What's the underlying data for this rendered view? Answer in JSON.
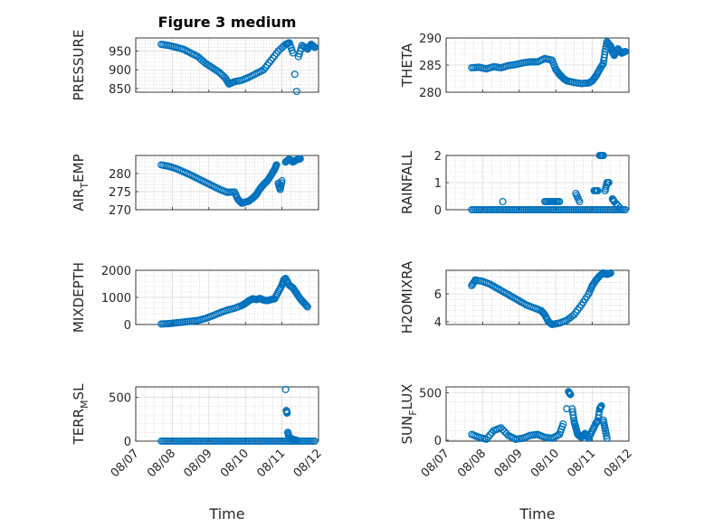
{
  "figure": {
    "title": "Figure 3 medium",
    "xlabel": "Time",
    "marker_color": "#0072BD"
  },
  "chart_data": [
    {
      "type": "scatter",
      "ylabel": "PRESSURE",
      "y_sub": "",
      "xlim": [
        "08/07",
        "08/12"
      ],
      "ylim": [
        840,
        985
      ],
      "yticks": [
        850,
        900,
        950
      ],
      "xticklabels": false,
      "series": [
        {
          "values": [
            [
              0.7,
              968
            ],
            [
              0.9,
              965
            ],
            [
              1.1,
              960
            ],
            [
              1.3,
              955
            ],
            [
              1.5,
              945
            ],
            [
              1.7,
              935
            ],
            [
              1.9,
              918
            ],
            [
              2.1,
              905
            ],
            [
              2.3,
              892
            ],
            [
              2.45,
              878
            ],
            [
              2.55,
              862
            ],
            [
              2.7,
              868
            ],
            [
              2.9,
              872
            ],
            [
              3.1,
              880
            ],
            [
              3.3,
              890
            ],
            [
              3.5,
              900
            ],
            [
              3.7,
              925
            ],
            [
              3.9,
              950
            ],
            [
              4.1,
              968
            ],
            [
              4.2,
              972
            ],
            [
              4.3,
              945
            ],
            [
              4.35,
              888
            ],
            [
              4.4,
              842
            ],
            [
              4.45,
              935
            ],
            [
              4.55,
              965
            ],
            [
              4.7,
              955
            ],
            [
              4.8,
              968
            ],
            [
              4.9,
              960
            ]
          ]
        }
      ]
    },
    {
      "type": "scatter",
      "ylabel": "THETA",
      "y_sub": "",
      "xlim": [
        "08/07",
        "08/12"
      ],
      "ylim": [
        280,
        290
      ],
      "yticks": [
        280,
        285,
        290
      ],
      "xticklabels": false,
      "series": [
        {
          "values": [
            [
              0.7,
              284.5
            ],
            [
              0.9,
              284.6
            ],
            [
              1.1,
              284.3
            ],
            [
              1.3,
              284.7
            ],
            [
              1.5,
              284.5
            ],
            [
              1.7,
              284.9
            ],
            [
              1.9,
              285.1
            ],
            [
              2.1,
              285.4
            ],
            [
              2.3,
              285.6
            ],
            [
              2.5,
              285.6
            ],
            [
              2.7,
              286.2
            ],
            [
              2.9,
              285.9
            ],
            [
              3.0,
              284.2
            ],
            [
              3.1,
              283.3
            ],
            [
              3.2,
              282.6
            ],
            [
              3.3,
              282.1
            ],
            [
              3.5,
              281.8
            ],
            [
              3.7,
              281.6
            ],
            [
              3.9,
              281.7
            ],
            [
              4.0,
              282.1
            ],
            [
              4.1,
              283.0
            ],
            [
              4.2,
              284.2
            ],
            [
              4.3,
              285.3
            ],
            [
              4.35,
              287.5
            ],
            [
              4.4,
              289.3
            ],
            [
              4.5,
              288.5
            ],
            [
              4.55,
              287.4
            ],
            [
              4.6,
              286.8
            ],
            [
              4.7,
              288.0
            ],
            [
              4.8,
              287.2
            ],
            [
              4.9,
              287.5
            ]
          ]
        }
      ]
    },
    {
      "type": "scatter",
      "ylabel": "AIR",
      "y_sub": "T",
      "ylabel_tail": "EMP",
      "xlim": [
        "08/07",
        "08/12"
      ],
      "ylim": [
        270,
        285
      ],
      "yticks": [
        270,
        275,
        280
      ],
      "xticklabels": false,
      "series": [
        {
          "values": [
            [
              0.7,
              282.4
            ],
            [
              0.9,
              282.0
            ],
            [
              1.1,
              281.4
            ],
            [
              1.3,
              280.5
            ],
            [
              1.5,
              279.6
            ],
            [
              1.7,
              278.6
            ],
            [
              1.9,
              277.6
            ],
            [
              2.1,
              276.6
            ],
            [
              2.3,
              275.6
            ],
            [
              2.5,
              274.8
            ],
            [
              2.7,
              274.9
            ],
            [
              2.8,
              272.8
            ],
            [
              2.9,
              271.8
            ],
            [
              3.0,
              272.1
            ],
            [
              3.1,
              272.4
            ],
            [
              3.2,
              273.2
            ],
            [
              3.3,
              274.2
            ],
            [
              3.4,
              275.8
            ],
            [
              3.5,
              277.0
            ],
            [
              3.6,
              278.0
            ],
            [
              3.7,
              279.5
            ],
            [
              3.8,
              281.2
            ],
            [
              3.85,
              282.4
            ],
            [
              3.9,
              277.3
            ],
            [
              3.95,
              275.6
            ],
            [
              4.0,
              278.0
            ],
            [
              4.1,
              283.2
            ],
            [
              4.2,
              284.0
            ],
            [
              4.3,
              283.2
            ],
            [
              4.4,
              283.8
            ],
            [
              4.5,
              284.1
            ]
          ]
        }
      ]
    },
    {
      "type": "scatter",
      "ylabel": "RAINFALL",
      "y_sub": "",
      "xlim": [
        "08/07",
        "08/12"
      ],
      "ylim": [
        0,
        2
      ],
      "yticks": [
        0,
        1,
        2
      ],
      "xticklabels": false,
      "series": [
        {
          "values": [
            [
              0.7,
              0
            ],
            [
              0.9,
              0
            ],
            [
              1.1,
              0
            ],
            [
              1.3,
              0
            ],
            [
              1.5,
              0
            ],
            [
              1.7,
              0
            ],
            [
              1.9,
              0
            ],
            [
              2.1,
              0
            ],
            [
              2.3,
              0
            ],
            [
              2.5,
              0
            ],
            [
              2.7,
              0
            ],
            [
              2.9,
              0
            ],
            [
              3.1,
              0
            ],
            [
              3.3,
              0
            ],
            [
              3.5,
              0
            ],
            [
              3.7,
              0
            ],
            [
              3.9,
              0
            ],
            [
              4.1,
              0
            ],
            [
              4.3,
              0
            ],
            [
              4.5,
              0
            ],
            [
              4.7,
              0
            ],
            [
              4.9,
              0
            ],
            [
              1.55,
              0.3
            ],
            [
              2.7,
              0.3
            ],
            [
              2.85,
              0.3
            ],
            [
              2.95,
              0.3
            ],
            [
              3.1,
              0.3
            ],
            [
              3.55,
              0.6
            ],
            [
              3.65,
              0.3
            ],
            [
              4.05,
              0.7
            ],
            [
              4.15,
              0.7
            ],
            [
              4.2,
              2.0
            ],
            [
              4.3,
              2.0
            ],
            [
              4.35,
              0.7
            ],
            [
              4.4,
              1.0
            ],
            [
              4.45,
              1.0
            ],
            [
              4.55,
              0.4
            ],
            [
              4.6,
              0.3
            ],
            [
              4.8,
              0
            ]
          ]
        }
      ]
    },
    {
      "type": "scatter",
      "ylabel": "MIXDEPTH",
      "y_sub": "",
      "xlim": [
        "08/07",
        "08/12"
      ],
      "ylim": [
        0,
        2000
      ],
      "yticks": [
        0,
        1000,
        2000
      ],
      "xticklabels": false,
      "series": [
        {
          "values": [
            [
              0.7,
              20
            ],
            [
              0.9,
              30
            ],
            [
              1.1,
              60
            ],
            [
              1.3,
              90
            ],
            [
              1.5,
              120
            ],
            [
              1.7,
              150
            ],
            [
              1.9,
              220
            ],
            [
              2.1,
              320
            ],
            [
              2.3,
              430
            ],
            [
              2.5,
              530
            ],
            [
              2.7,
              600
            ],
            [
              2.9,
              700
            ],
            [
              3.0,
              780
            ],
            [
              3.1,
              880
            ],
            [
              3.2,
              950
            ],
            [
              3.3,
              920
            ],
            [
              3.4,
              960
            ],
            [
              3.5,
              900
            ],
            [
              3.6,
              880
            ],
            [
              3.7,
              920
            ],
            [
              3.8,
              950
            ],
            [
              3.9,
              1200
            ],
            [
              4.0,
              1450
            ],
            [
              4.05,
              1650
            ],
            [
              4.1,
              1700
            ],
            [
              4.2,
              1450
            ],
            [
              4.3,
              1350
            ],
            [
              4.4,
              1150
            ],
            [
              4.5,
              950
            ],
            [
              4.6,
              800
            ],
            [
              4.7,
              650
            ]
          ]
        }
      ]
    },
    {
      "type": "scatter",
      "ylabel": "H2OMIXRA",
      "y_sub": "",
      "xlim": [
        "08/07",
        "08/12"
      ],
      "ylim": [
        3.8,
        7.7
      ],
      "yticks": [
        4,
        6
      ],
      "xticklabels": false,
      "series": [
        {
          "values": [
            [
              0.7,
              6.6
            ],
            [
              0.8,
              7.0
            ],
            [
              1.0,
              6.9
            ],
            [
              1.2,
              6.7
            ],
            [
              1.4,
              6.4
            ],
            [
              1.6,
              6.1
            ],
            [
              1.8,
              5.8
            ],
            [
              2.0,
              5.5
            ],
            [
              2.2,
              5.2
            ],
            [
              2.4,
              5.0
            ],
            [
              2.6,
              4.8
            ],
            [
              2.7,
              4.5
            ],
            [
              2.8,
              4.0
            ],
            [
              2.9,
              3.8
            ],
            [
              3.1,
              3.9
            ],
            [
              3.3,
              4.1
            ],
            [
              3.5,
              4.5
            ],
            [
              3.7,
              5.2
            ],
            [
              3.9,
              6.0
            ],
            [
              4.0,
              6.6
            ],
            [
              4.1,
              7.0
            ],
            [
              4.2,
              7.3
            ],
            [
              4.3,
              7.5
            ],
            [
              4.4,
              7.4
            ],
            [
              4.5,
              7.5
            ]
          ]
        }
      ]
    },
    {
      "type": "scatter",
      "ylabel": "TERR",
      "y_sub": "M",
      "ylabel_tail": "SL",
      "xlim": [
        "08/07",
        "08/12"
      ],
      "ylim": [
        0,
        620
      ],
      "yticks": [
        0,
        500
      ],
      "xticklabels": true,
      "xticks": [
        "08/07",
        "08/08",
        "08/09",
        "08/10",
        "08/11",
        "08/12"
      ],
      "series": [
        {
          "values": [
            [
              0.7,
              0
            ],
            [
              0.9,
              0
            ],
            [
              1.1,
              0
            ],
            [
              1.3,
              0
            ],
            [
              1.5,
              0
            ],
            [
              1.7,
              0
            ],
            [
              1.9,
              0
            ],
            [
              2.1,
              0
            ],
            [
              2.3,
              0
            ],
            [
              2.5,
              0
            ],
            [
              2.7,
              0
            ],
            [
              2.9,
              0
            ],
            [
              3.1,
              0
            ],
            [
              3.3,
              0
            ],
            [
              3.5,
              0
            ],
            [
              3.7,
              0
            ],
            [
              3.9,
              0
            ],
            [
              4.1,
              0
            ],
            [
              4.3,
              0
            ],
            [
              4.5,
              0
            ],
            [
              4.7,
              0
            ],
            [
              4.9,
              0
            ],
            [
              4.1,
              590
            ],
            [
              4.12,
              350
            ],
            [
              4.14,
              320
            ],
            [
              4.16,
              100
            ],
            [
              4.2,
              40
            ],
            [
              4.3,
              20
            ],
            [
              4.4,
              10
            ]
          ]
        }
      ]
    },
    {
      "type": "scatter",
      "ylabel": "SUN",
      "y_sub": "F",
      "ylabel_tail": "LUX",
      "xlim": [
        "08/07",
        "08/12"
      ],
      "ylim": [
        -10,
        560
      ],
      "yticks": [
        0,
        500
      ],
      "xticklabels": true,
      "xticks": [
        "08/07",
        "08/08",
        "08/09",
        "08/10",
        "08/11",
        "08/12"
      ],
      "series": [
        {
          "values": [
            [
              0.7,
              60
            ],
            [
              0.9,
              30
            ],
            [
              1.1,
              10
            ],
            [
              1.3,
              100
            ],
            [
              1.5,
              130
            ],
            [
              1.7,
              50
            ],
            [
              1.9,
              10
            ],
            [
              2.1,
              20
            ],
            [
              2.3,
              50
            ],
            [
              2.5,
              60
            ],
            [
              2.7,
              30
            ],
            [
              2.9,
              20
            ],
            [
              3.1,
              60
            ],
            [
              3.2,
              170
            ],
            [
              3.3,
              330
            ],
            [
              3.35,
              510
            ],
            [
              3.4,
              480
            ],
            [
              3.45,
              330
            ],
            [
              3.5,
              200
            ],
            [
              3.55,
              130
            ],
            [
              3.6,
              60
            ],
            [
              3.7,
              30
            ],
            [
              3.8,
              70
            ],
            [
              3.9,
              20
            ],
            [
              4.0,
              100
            ],
            [
              4.1,
              180
            ],
            [
              4.15,
              200
            ],
            [
              4.2,
              330
            ],
            [
              4.25,
              360
            ],
            [
              4.3,
              210
            ],
            [
              4.35,
              120
            ],
            [
              4.4,
              20
            ]
          ]
        }
      ]
    }
  ]
}
